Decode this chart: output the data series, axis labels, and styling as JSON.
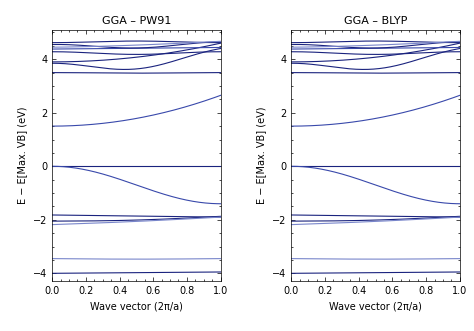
{
  "title_left": "GGA – PW91",
  "title_right": "GGA – BLYP",
  "xlabel": "Wave vector (2π/a)",
  "ylabel": "E − E[Max. VB] (eV)",
  "xlim": [
    0.0,
    1.0
  ],
  "ylim": [
    -4.3,
    5.1
  ],
  "yticks": [
    -4,
    -2,
    0,
    2,
    4
  ],
  "xticks": [
    0.0,
    0.2,
    0.4,
    0.6,
    0.8,
    1.0
  ],
  "line_color_dark": "#1a237e",
  "line_color_mid": "#3949ab",
  "line_color_light": "#7986cb",
  "bg_color": "#ffffff",
  "linewidth": 0.8,
  "figsize": [
    4.74,
    3.31
  ],
  "dpi": 100
}
